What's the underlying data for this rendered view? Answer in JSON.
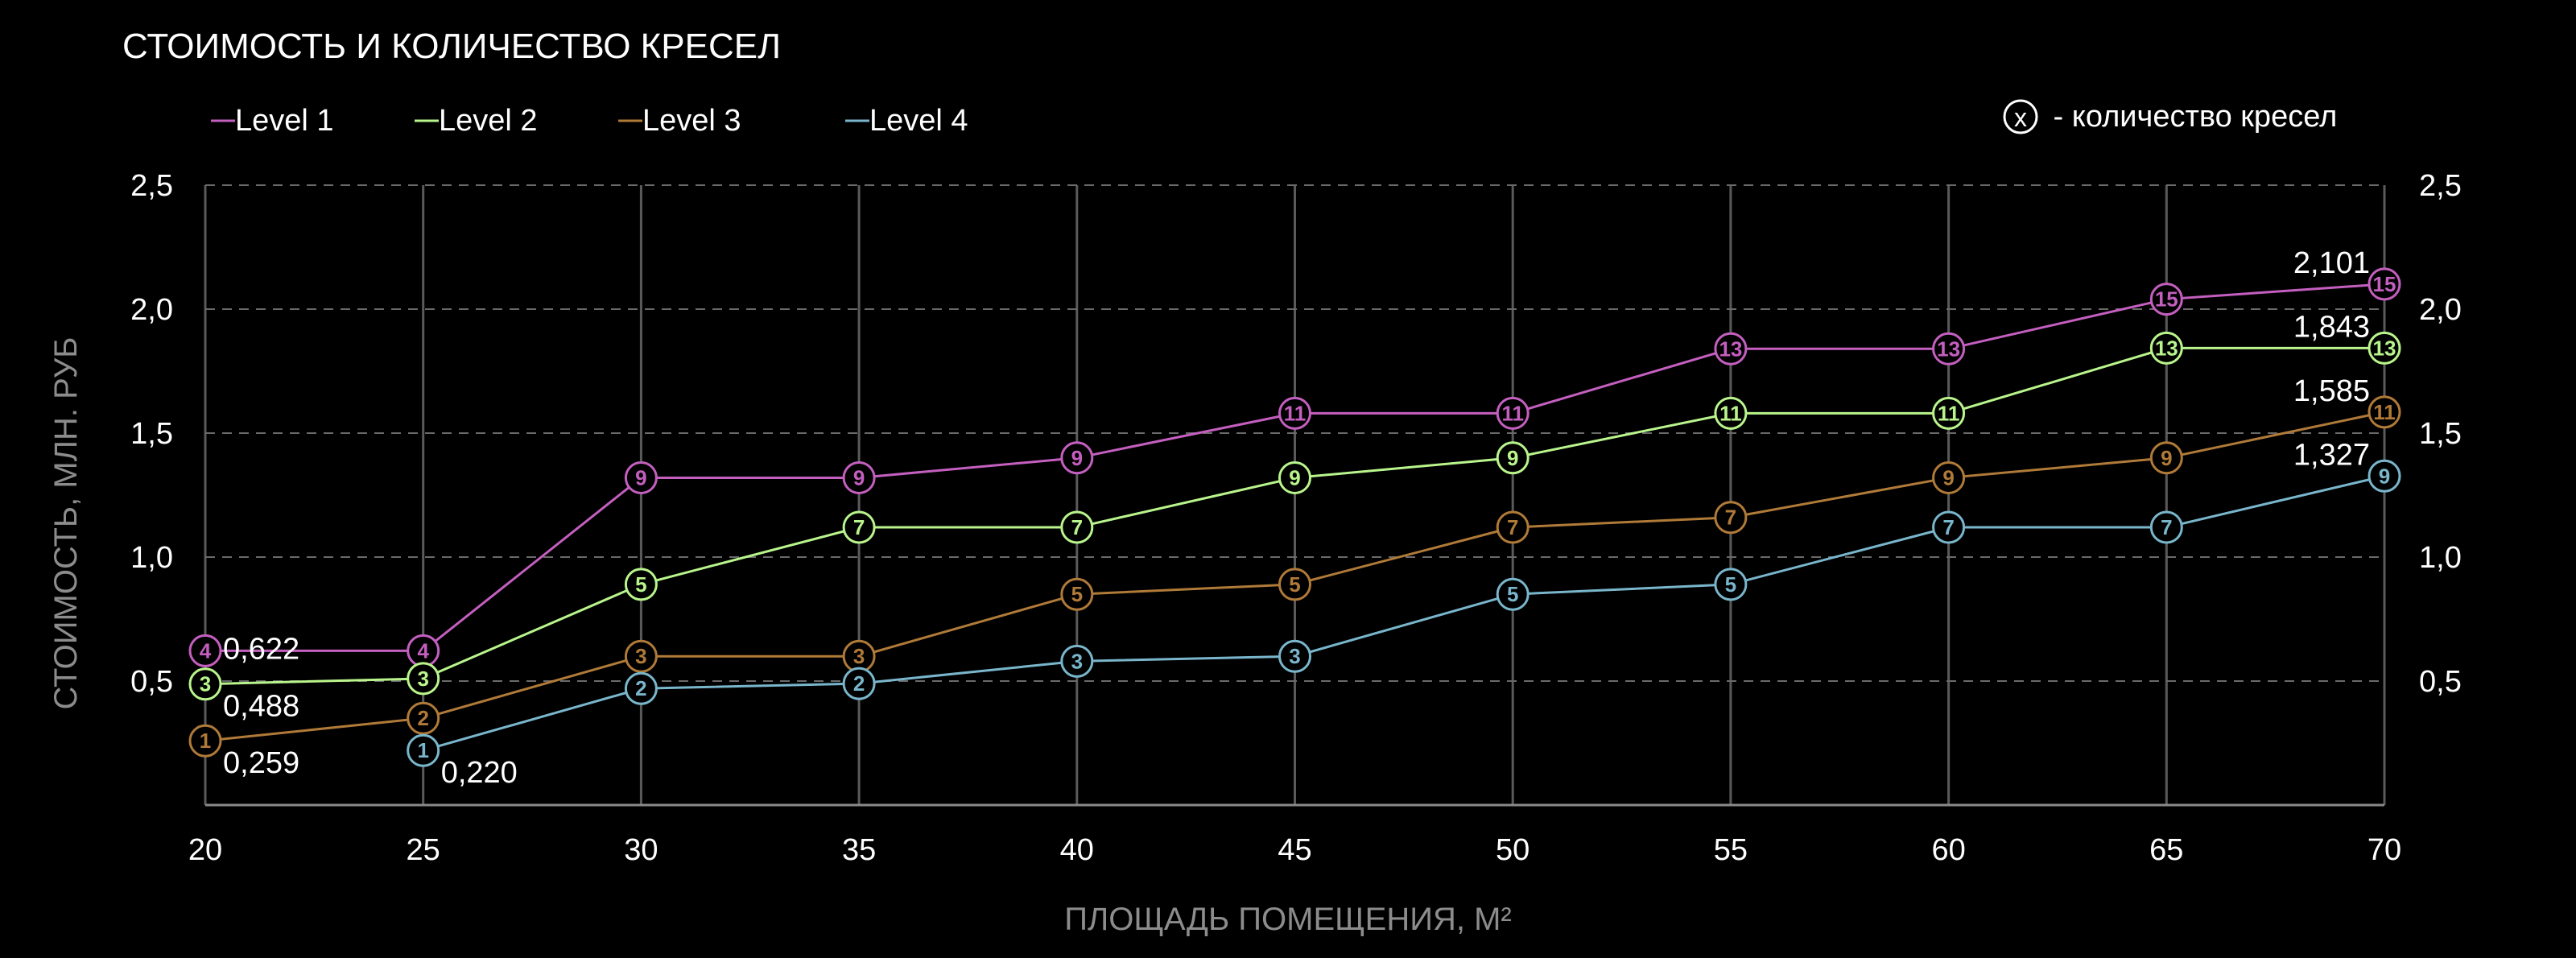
{
  "chart_data": {
    "type": "line",
    "title": "СТОИМОСТЬ И КОЛИЧЕСТВО КРЕСЕЛ",
    "xlabel": "ПЛОЩАДЬ ПОМЕЩЕНИЯ, М²",
    "ylabel": "СТОИМОСТЬ, МЛН. РУБ",
    "x": [
      20,
      25,
      30,
      35,
      40,
      45,
      50,
      55,
      60,
      65,
      70
    ],
    "x_tick_labels": [
      "20",
      "25",
      "30",
      "35",
      "40",
      "45",
      "50",
      "55",
      "60",
      "65",
      "70"
    ],
    "xlim": [
      20,
      70
    ],
    "ylim": [
      0,
      2.5
    ],
    "y_ticks": [
      0.5,
      1.0,
      1.5,
      2.0,
      2.5
    ],
    "y_tick_labels": [
      "0,5",
      "1,0",
      "1,5",
      "2,0",
      "2,5"
    ],
    "grid": true,
    "legend_position": "top-left",
    "marker_note": {
      "symbol": "x",
      "text": " - количество кресел"
    },
    "series": [
      {
        "name": "Level 1",
        "color": "#c45fc0",
        "x": [
          20,
          25,
          30,
          35,
          40,
          45,
          50,
          55,
          60,
          65,
          70
        ],
        "values": [
          0.622,
          0.622,
          1.32,
          1.32,
          1.4,
          1.58,
          1.58,
          1.84,
          1.84,
          2.04,
          2.101
        ],
        "seats": [
          "4",
          "4",
          "9",
          "9",
          "9",
          "11",
          "11",
          "13",
          "13",
          "15",
          "15"
        ]
      },
      {
        "name": "Level 2",
        "color": "#b9f58c",
        "x": [
          20,
          25,
          30,
          35,
          40,
          45,
          50,
          55,
          60,
          65,
          70
        ],
        "values": [
          0.488,
          0.51,
          0.89,
          1.12,
          1.12,
          1.32,
          1.4,
          1.58,
          1.58,
          1.843,
          1.843
        ],
        "seats": [
          "3",
          "3",
          "5",
          "7",
          "7",
          "9",
          "9",
          "11",
          "11",
          "13",
          "13"
        ]
      },
      {
        "name": "Level 3",
        "color": "#b07a38",
        "x": [
          20,
          25,
          30,
          35,
          40,
          45,
          50,
          55,
          60,
          65,
          70
        ],
        "values": [
          0.259,
          0.35,
          0.6,
          0.6,
          0.85,
          0.89,
          1.12,
          1.16,
          1.32,
          1.4,
          1.585
        ],
        "seats": [
          "1",
          "2",
          "3",
          "3",
          "5",
          "5",
          "7",
          "7",
          "9",
          "9",
          "11"
        ]
      },
      {
        "name": "Level 4",
        "color": "#79b6cc",
        "x": [
          25,
          30,
          35,
          40,
          45,
          50,
          55,
          60,
          65,
          70
        ],
        "values": [
          0.22,
          0.47,
          0.49,
          0.58,
          0.6,
          0.85,
          0.89,
          1.12,
          1.12,
          1.327
        ],
        "seats": [
          "1",
          "2",
          "2",
          "3",
          "3",
          "5",
          "5",
          "7",
          "7",
          "9"
        ]
      }
    ],
    "annotations": [
      {
        "text": "0,622",
        "x": 20,
        "y": 0.622,
        "anchor": "right"
      },
      {
        "text": "0,488",
        "x": 20,
        "y": 0.488,
        "anchor": "below-right"
      },
      {
        "text": "0,259",
        "x": 20,
        "y": 0.259,
        "anchor": "below-right"
      },
      {
        "text": "0,220",
        "x": 25,
        "y": 0.22,
        "anchor": "below-right"
      },
      {
        "text": "2,101",
        "x": 70,
        "y": 2.101,
        "anchor": "above-left"
      },
      {
        "text": "1,843",
        "x": 70,
        "y": 1.843,
        "anchor": "above-left"
      },
      {
        "text": "1,585",
        "x": 70,
        "y": 1.585,
        "anchor": "above-left"
      },
      {
        "text": "1,327",
        "x": 70,
        "y": 1.327,
        "anchor": "above-left"
      }
    ]
  }
}
